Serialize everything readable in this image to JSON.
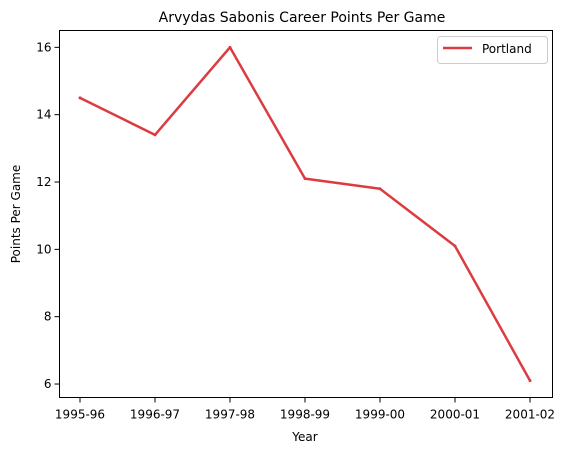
{
  "chart_data": {
    "type": "line",
    "title": "Arvydas Sabonis Career Points Per Game",
    "xlabel": "Year",
    "ylabel": "Points Per Game",
    "categories": [
      "1995-96",
      "1996-97",
      "1997-98",
      "1998-99",
      "1999-00",
      "2000-01",
      "2001-02"
    ],
    "series": [
      {
        "name": "Portland",
        "color": "#dc3b3f",
        "values": [
          14.5,
          13.4,
          16.0,
          12.1,
          11.8,
          10.1,
          6.1
        ]
      }
    ],
    "yticks": [
      6,
      8,
      10,
      12,
      14,
      16
    ],
    "ylim": [
      5.6,
      16.5
    ],
    "grid": false,
    "legend_position": "upper right"
  }
}
